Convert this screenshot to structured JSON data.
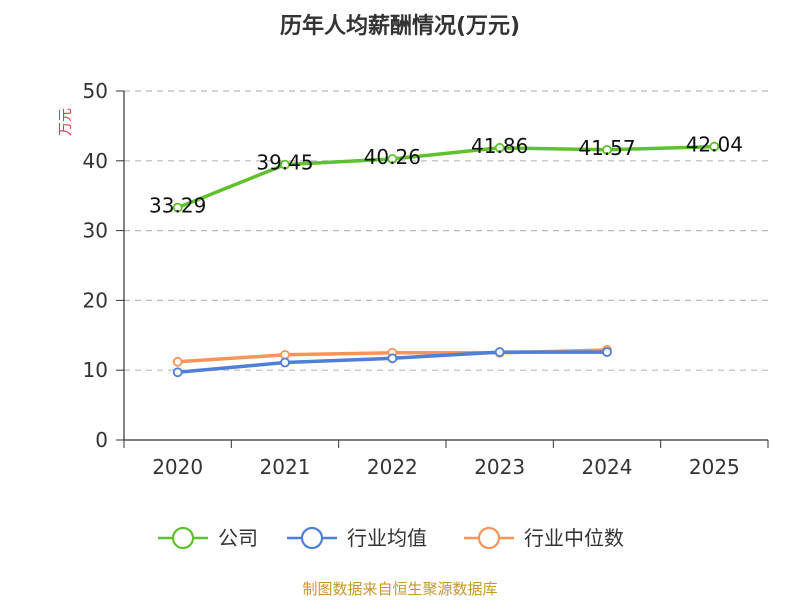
{
  "chart_data": {
    "type": "line",
    "title": "历年人均薪酬情况(万元)",
    "ylabel": "万元",
    "xlabel": "",
    "categories": [
      "2020",
      "2021",
      "2022",
      "2023",
      "2024",
      "2025"
    ],
    "ylim": [
      0,
      50
    ],
    "yticks": [
      0,
      10,
      20,
      30,
      40,
      50
    ],
    "grid": true,
    "legend_position": "bottom",
    "series": [
      {
        "name": "公司",
        "color": "#5fc12e",
        "values": [
          33.29,
          39.45,
          40.26,
          41.86,
          41.57,
          42.04
        ],
        "labels": [
          "33.29",
          "39.45",
          "40.26",
          "41.86",
          "41.57",
          "42.04"
        ]
      },
      {
        "name": "行业均值",
        "color": "#4f7fd9",
        "values": [
          9.7,
          11.1,
          11.7,
          12.6,
          12.6,
          null
        ]
      },
      {
        "name": "行业中位数",
        "color": "#f7945c",
        "values": [
          11.2,
          12.2,
          12.5,
          12.5,
          12.9,
          null
        ]
      }
    ],
    "ylabel_color": "#e03c3c"
  },
  "source": {
    "text": "制图数据来自恒生聚源数据库",
    "color": "#c8962a"
  }
}
